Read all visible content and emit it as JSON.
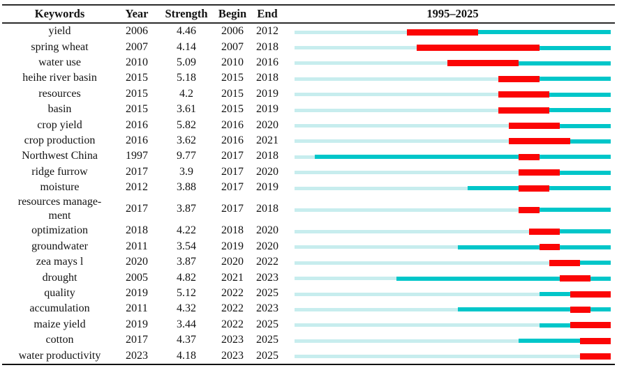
{
  "colors": {
    "pre_appearance": "#c7edee",
    "active": "#00c6c9",
    "burst": "#fb0505",
    "rule": "#2a2a2a",
    "text": "#121212"
  },
  "header": {
    "keywords": "Keywords",
    "year": "Year",
    "strength": "Strength",
    "begin": "Begin",
    "end": "End",
    "timeline": "1995–2025"
  },
  "chart_data": {
    "type": "table",
    "title": "Keywords with strongest bursts",
    "columns": [
      "Keywords",
      "Year",
      "Strength",
      "Begin",
      "End",
      "1995–2025"
    ],
    "timeline": {
      "label": "1995–2025",
      "start_year": 1995,
      "end_year": 2025
    },
    "bar_colors": {
      "before_first_occurrence": "#c7edee",
      "active_period": "#00c6c9",
      "burst_period": "#fb0505"
    },
    "rows": [
      {
        "keyword": "yield",
        "display": "yield",
        "year": 2006,
        "strength": "4.46",
        "begin": 2006,
        "end": 2012
      },
      {
        "keyword": "spring wheat",
        "display": "spring wheat",
        "year": 2007,
        "strength": "4.14",
        "begin": 2007,
        "end": 2018
      },
      {
        "keyword": "water use",
        "display": "water use",
        "year": 2010,
        "strength": "5.09",
        "begin": 2010,
        "end": 2016
      },
      {
        "keyword": "heihe river basin",
        "display": "heihe river basin",
        "year": 2015,
        "strength": "5.18",
        "begin": 2015,
        "end": 2018
      },
      {
        "keyword": "resources",
        "display": "resources",
        "year": 2015,
        "strength": "4.2",
        "begin": 2015,
        "end": 2019
      },
      {
        "keyword": "basin",
        "display": "basin",
        "year": 2015,
        "strength": "3.61",
        "begin": 2015,
        "end": 2019
      },
      {
        "keyword": "crop yield",
        "display": "crop yield",
        "year": 2016,
        "strength": "5.82",
        "begin": 2016,
        "end": 2020
      },
      {
        "keyword": "crop production",
        "display": "crop production",
        "year": 2016,
        "strength": "3.62",
        "begin": 2016,
        "end": 2021
      },
      {
        "keyword": "Northwest China",
        "display": "Northwest China",
        "year": 1997,
        "strength": "9.77",
        "begin": 2017,
        "end": 2018
      },
      {
        "keyword": "ridge furrow",
        "display": "ridge furrow",
        "year": 2017,
        "strength": "3.9",
        "begin": 2017,
        "end": 2020
      },
      {
        "keyword": "moisture",
        "display": "moisture",
        "year": 2012,
        "strength": "3.88",
        "begin": 2017,
        "end": 2019
      },
      {
        "keyword": "resources management",
        "display": "resources manage-\nment",
        "year": 2017,
        "strength": "3.87",
        "begin": 2017,
        "end": 2018
      },
      {
        "keyword": "optimization",
        "display": "optimization",
        "year": 2018,
        "strength": "4.22",
        "begin": 2018,
        "end": 2020
      },
      {
        "keyword": "groundwater",
        "display": "groundwater",
        "year": 2011,
        "strength": "3.54",
        "begin": 2019,
        "end": 2020
      },
      {
        "keyword": "zea mays l",
        "display": "zea mays l",
        "year": 2020,
        "strength": "3.87",
        "begin": 2020,
        "end": 2022
      },
      {
        "keyword": "drought",
        "display": "drought",
        "year": 2005,
        "strength": "4.82",
        "begin": 2021,
        "end": 2023
      },
      {
        "keyword": "quality",
        "display": "quality",
        "year": 2019,
        "strength": "5.12",
        "begin": 2022,
        "end": 2025
      },
      {
        "keyword": "accumulation",
        "display": "accumulation",
        "year": 2011,
        "strength": "4.32",
        "begin": 2022,
        "end": 2023
      },
      {
        "keyword": "maize yield",
        "display": "maize yield",
        "year": 2019,
        "strength": "3.44",
        "begin": 2022,
        "end": 2025
      },
      {
        "keyword": "cotton",
        "display": "cotton",
        "year": 2017,
        "strength": "4.37",
        "begin": 2023,
        "end": 2025
      },
      {
        "keyword": "water productivity",
        "display": "water productivity",
        "year": 2023,
        "strength": "4.18",
        "begin": 2023,
        "end": 2025
      }
    ]
  }
}
